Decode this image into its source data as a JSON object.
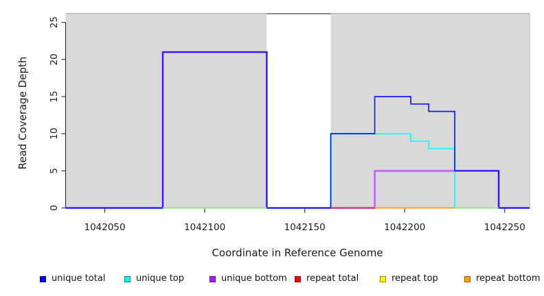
{
  "chart_data": {
    "type": "line",
    "subtype": "step-coverage-plot",
    "title": "",
    "xlabel": "Coordinate in Reference Genome",
    "ylabel": "Read Coverage Depth",
    "xlim": [
      1042030.4,
      1042262.5
    ],
    "ylim": [
      0,
      26.25
    ],
    "x_ticks": [
      1042050,
      1042100,
      1042150,
      1042200,
      1042250
    ],
    "x_tick_labels": [
      "1042050",
      "1042100",
      "1042150",
      "1042200",
      "1042250"
    ],
    "y_ticks": [
      0,
      5,
      10,
      15,
      20,
      25
    ],
    "y_tick_labels": [
      "0",
      "5",
      "10",
      "15",
      "20",
      "25"
    ],
    "grid": "off",
    "legend_position": "bottom-horizontal",
    "background_shading": {
      "panel_color": "#d9d9d9",
      "top_border_color": "#ababab",
      "right_border_color": "#bdbdbd",
      "gap_top_line_color": "#8a8a8a",
      "regions": [
        {
          "from": 1042030.4,
          "to": 1042131,
          "type": "shaded"
        },
        {
          "from": 1042131,
          "to": 1042163,
          "type": "gap-white"
        },
        {
          "from": 1042163,
          "to": 1042262.5,
          "type": "shaded"
        }
      ]
    },
    "series": [
      {
        "name": "unique total",
        "color": "#0000ff",
        "steps": [
          [
            1042030.4,
            0
          ],
          [
            1042079,
            21
          ],
          [
            1042131,
            0
          ],
          [
            1042163,
            10
          ],
          [
            1042185,
            15
          ],
          [
            1042203,
            14
          ],
          [
            1042212,
            13
          ],
          [
            1042225,
            5
          ],
          [
            1042247,
            0
          ]
        ],
        "end": 1042262.5
      },
      {
        "name": "unique top",
        "color": "#00ffff",
        "steps": [
          [
            1042030.4,
            0
          ],
          [
            1042163,
            10
          ],
          [
            1042203,
            9
          ],
          [
            1042212,
            8
          ],
          [
            1042225,
            0
          ]
        ],
        "end": 1042262.5
      },
      {
        "name": "unique bottom",
        "color": "#a020f0",
        "steps": [
          [
            1042030.4,
            0
          ],
          [
            1042079,
            21
          ],
          [
            1042131,
            0
          ],
          [
            1042185,
            5
          ],
          [
            1042247,
            0
          ]
        ],
        "end": 1042262.5
      },
      {
        "name": "repeat total",
        "color": "#ff0000",
        "steps": [
          [
            1042030.4,
            0
          ]
        ],
        "end": 1042262.5
      },
      {
        "name": "repeat top",
        "color": "#ffff00",
        "steps": [
          [
            1042030.4,
            0
          ]
        ],
        "end": 1042262.5
      },
      {
        "name": "repeat bottom",
        "color": "#ffa500",
        "steps": [
          [
            1042030.4,
            0
          ]
        ],
        "end": 1042262.5
      }
    ],
    "baseline_overlap_segments": [
      {
        "from": 1042079,
        "to": 1042131,
        "color": "#8ee98c"
      },
      {
        "from": 1042163,
        "to": 1042185,
        "color": "#dd3c5c"
      },
      {
        "from": 1042185,
        "to": 1042225,
        "color": "#ff9f1c"
      },
      {
        "from": 1042225,
        "to": 1042247,
        "color": "#8ee98c"
      }
    ],
    "legend": [
      {
        "label": "unique total",
        "fill": "#0000ff",
        "border": "#000099"
      },
      {
        "label": "unique top",
        "fill": "#00ffff",
        "border": "#007f8c"
      },
      {
        "label": "unique bottom",
        "fill": "#a020f0",
        "border": "#5c0da0"
      },
      {
        "label": "repeat total",
        "fill": "#ff0000",
        "border": "#990000"
      },
      {
        "label": "repeat top",
        "fill": "#ffff00",
        "border": "#8c8c00"
      },
      {
        "label": "repeat bottom",
        "fill": "#ffa500",
        "border": "#995c00"
      }
    ]
  }
}
